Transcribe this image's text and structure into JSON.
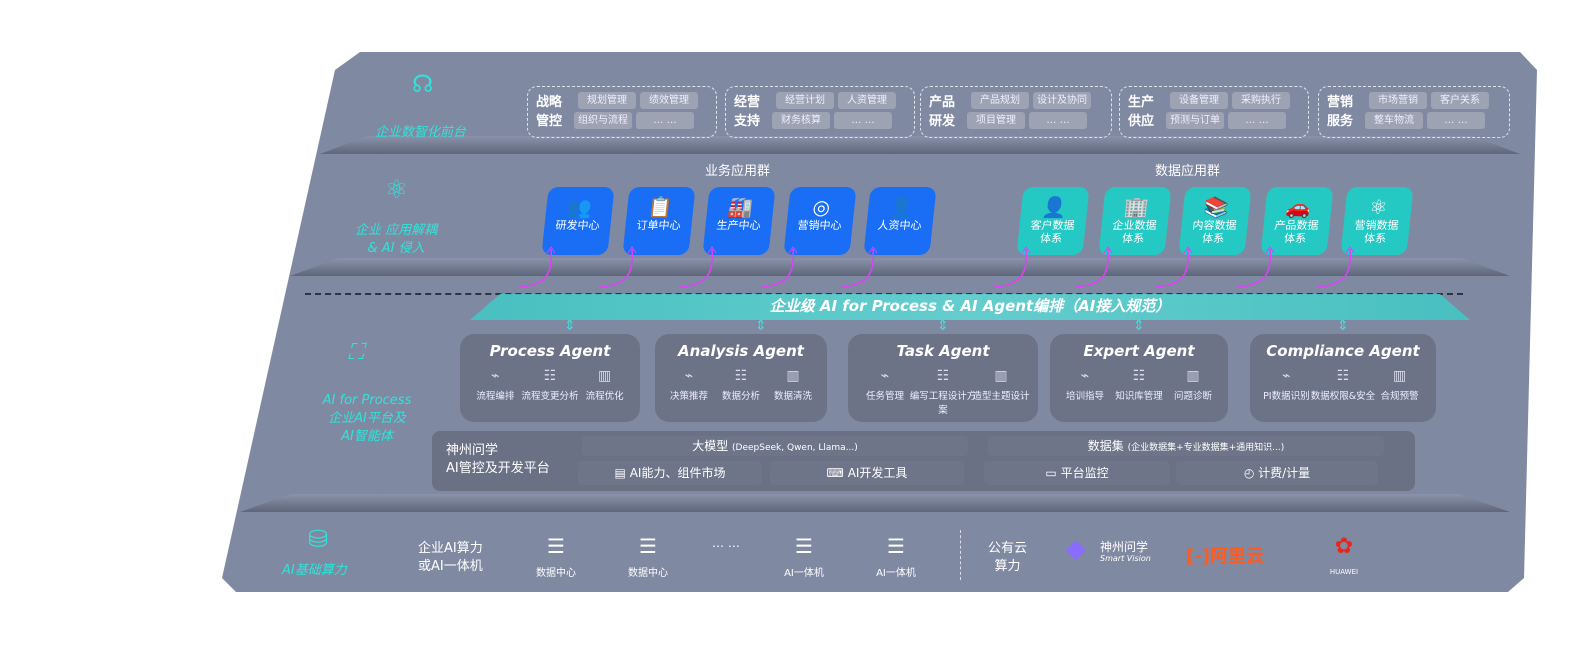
{
  "layers": {
    "front": {
      "label": "企业数智化前台",
      "icon": "brain-head-icon"
    },
    "apps": {
      "label": [
        "企业 应用解耦",
        "& AI 侵入"
      ],
      "icon": "molecule-icon"
    },
    "ai": {
      "label": [
        "AI for Process",
        "企业AI平台及",
        "AI智能体"
      ],
      "icon": "face-scan-icon"
    },
    "compute": {
      "label": "AI基础算力",
      "icon": "database-icon"
    }
  },
  "front_groups": [
    {
      "title": "战略管控",
      "items": [
        "规划管理",
        "绩效管理",
        "组织与流程",
        "… …"
      ]
    },
    {
      "title": "经营支持",
      "items": [
        "经营计划",
        "人资管理",
        "财务核算",
        "… …"
      ]
    },
    {
      "title": "产品研发",
      "items": [
        "产品规划",
        "设计及协同",
        "项目管理",
        "… …"
      ]
    },
    {
      "title": "生产供应",
      "items": [
        "设备管理",
        "采购执行",
        "预测与订单",
        "… …"
      ]
    },
    {
      "title": "营销服务",
      "items": [
        "市场营销",
        "客户关系",
        "整车物流",
        "… …"
      ]
    }
  ],
  "business_apps": {
    "title": "业务应用群",
    "items": [
      {
        "label": "研发中心",
        "icon": "users-icon"
      },
      {
        "label": "订单中心",
        "icon": "clipboard-icon"
      },
      {
        "label": "生产中心",
        "icon": "factory-icon"
      },
      {
        "label": "营销中心",
        "icon": "target-icon"
      },
      {
        "label": "人资中心",
        "icon": "person-icon"
      }
    ]
  },
  "data_apps": {
    "title": "数据应用群",
    "items": [
      {
        "label": "客户数据体系",
        "icon": "person-icon"
      },
      {
        "label": "企业数据体系",
        "icon": "building-icon"
      },
      {
        "label": "内容数据体系",
        "icon": "books-icon"
      },
      {
        "label": "产品数据体系",
        "icon": "car-icon"
      },
      {
        "label": "营销数据体系",
        "icon": "atom-icon"
      }
    ]
  },
  "orchestration": "企业级 AI for Process & AI Agent编排（AI接入规范）",
  "agents": [
    {
      "name": "Process Agent",
      "features": [
        "流程编排",
        "流程变更分析",
        "流程优化"
      ]
    },
    {
      "name": "Analysis Agent",
      "features": [
        "决策推荐",
        "数据分析",
        "数据清洗"
      ]
    },
    {
      "name": "Task Agent",
      "features": [
        "任务管理",
        "编写工程设计方案",
        "造型主题设计"
      ]
    },
    {
      "name": "Expert Agent",
      "features": [
        "培训指导",
        "知识库管理",
        "问题诊断"
      ]
    },
    {
      "name": "Compliance Agent",
      "features": [
        "PI数据识别",
        "数据权限&安全",
        "合规预警"
      ]
    }
  ],
  "platform": {
    "title": [
      "神州问学",
      "AI管控及开发平台"
    ],
    "model": "大模型",
    "model_note": "(DeepSeek, Qwen, Llama...)",
    "dataset": "数据集",
    "dataset_note": "(企业数据集+专业数据集+通用知识...)",
    "tools": [
      "AI能力、组件市场",
      "AI开发工具",
      "平台监控",
      "计费/计量"
    ]
  },
  "compute": {
    "private_label": [
      "企业AI算力",
      "或AI一体机"
    ],
    "items": [
      "数据中心",
      "数据中心",
      "AI一体机",
      "AI一体机"
    ],
    "ellipsis": "… …",
    "public_label": [
      "公有云",
      "算力"
    ],
    "vendors": [
      {
        "name": "神州问学",
        "sub": "Smart Vision"
      },
      {
        "name": "阿里云",
        "mark": "[-]"
      },
      {
        "name": "HUAWEI"
      }
    ],
    "colors": {
      "aliyun": "#ff5a1f",
      "huawei": "#e8261c"
    }
  },
  "colors": {
    "blue": "#1a6ef5",
    "teal": "#25c9c4",
    "accent": "#2fe3da",
    "arrow": "#e040fb"
  }
}
